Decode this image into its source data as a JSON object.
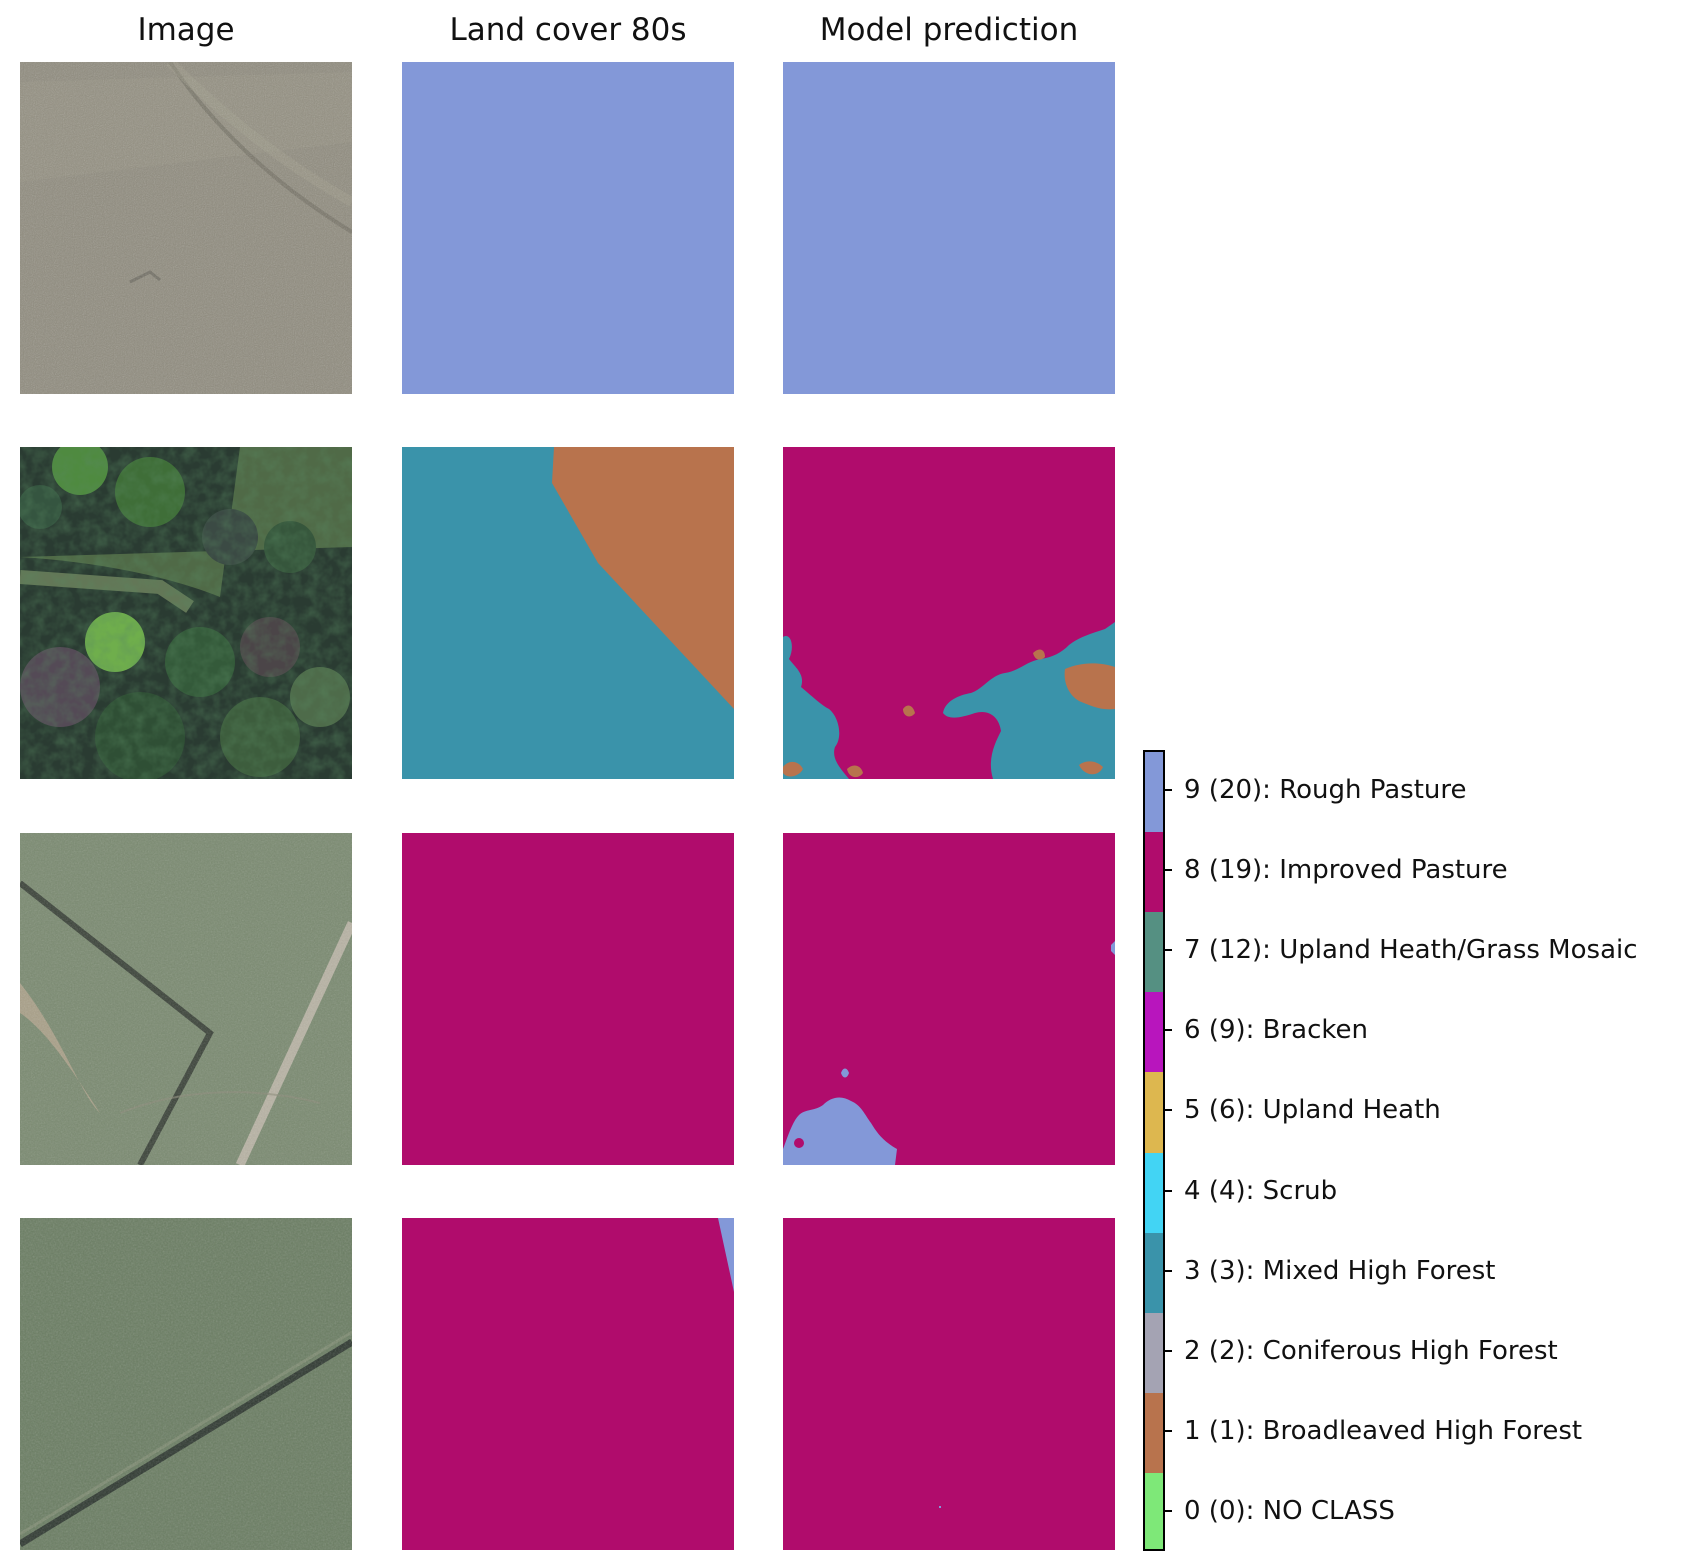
{
  "columns": {
    "image": "Image",
    "land_cover": "Land cover 80s",
    "prediction": "Model prediction"
  },
  "colors": {
    "no_class": "#7ee878",
    "broadleaved": "#b8734d",
    "coniferous": "#a4a3b3",
    "mixed_forest": "#3a93aa",
    "scrub": "#42d4f4",
    "upland_heath": "#ddb74f",
    "bracken": "#b815bd",
    "upland_mosaic": "#559082",
    "improved_pasture": "#b00c6c",
    "rough_pasture": "#8398d8"
  },
  "legend": {
    "items": [
      {
        "label": "9 (20): Rough Pasture",
        "color": "#8398d8"
      },
      {
        "label": "8 (19): Improved Pasture",
        "color": "#b00c6c"
      },
      {
        "label": "7 (12): Upland Heath/Grass Mosaic",
        "color": "#559082"
      },
      {
        "label": "6 (9): Bracken",
        "color": "#b815bd"
      },
      {
        "label": "5 (6): Upland Heath",
        "color": "#ddb74f"
      },
      {
        "label": "4 (4): Scrub",
        "color": "#42d4f4"
      },
      {
        "label": "3 (3): Mixed High Forest",
        "color": "#3a93aa"
      },
      {
        "label": "2 (2): Coniferous High Forest",
        "color": "#a4a3b3"
      },
      {
        "label": "1 (1): Broadleaved High Forest",
        "color": "#b8734d"
      },
      {
        "label": "0 (0): NO CLASS",
        "color": "#7ee878"
      }
    ]
  }
}
